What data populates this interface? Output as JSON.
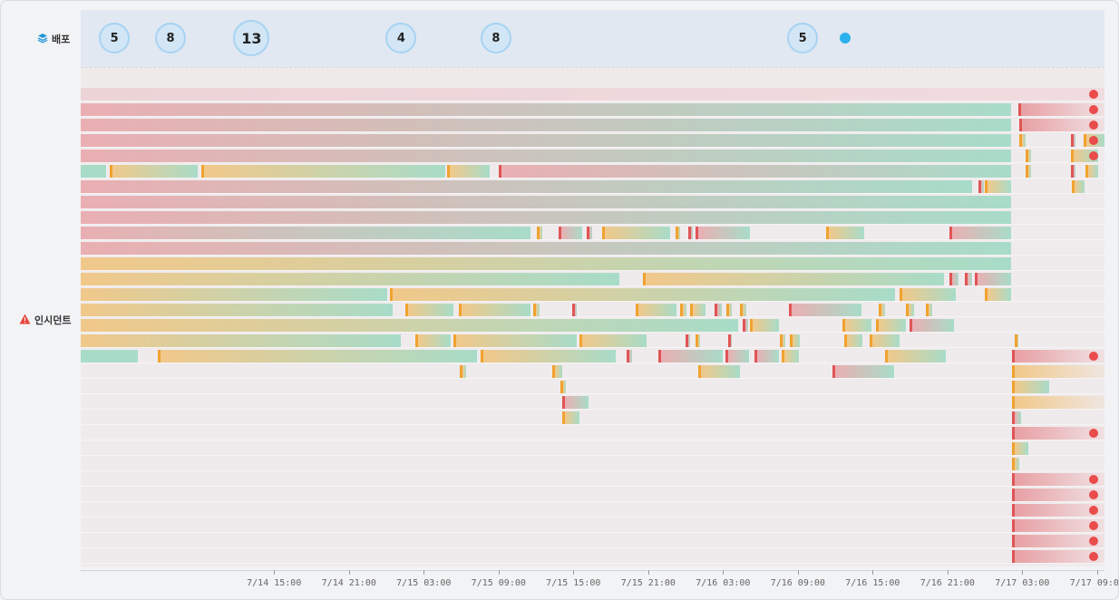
{
  "rows": {
    "deploy": {
      "label": "배포",
      "icon": "layers-icon"
    },
    "incident": {
      "label": "인시던트",
      "icon": "warning-icon"
    }
  },
  "deploy_counts": [
    {
      "count": "5",
      "t": 26.2
    },
    {
      "count": "8",
      "t": 30.7
    },
    {
      "count": "13",
      "t": 37.2
    },
    {
      "count": "4",
      "t": 49.2
    },
    {
      "count": "8",
      "t": 56.8
    },
    {
      "count": "5",
      "t": 81.4
    },
    {
      "count": "",
      "t": 84.8
    }
  ],
  "axis": {
    "start_hour": 23.5,
    "end_hour": 105.6,
    "ticks": [
      {
        "label": "7/14 15:00",
        "t": 39
      },
      {
        "label": "7/14 21:00",
        "t": 45
      },
      {
        "label": "7/15 03:00",
        "t": 51
      },
      {
        "label": "7/15 09:00",
        "t": 57
      },
      {
        "label": "7/15 15:00",
        "t": 63
      },
      {
        "label": "7/15 21:00",
        "t": 69
      },
      {
        "label": "7/16 03:00",
        "t": 75
      },
      {
        "label": "7/16 09:00",
        "t": 81
      },
      {
        "label": "7/16 15:00",
        "t": 87
      },
      {
        "label": "7/16 21:00",
        "t": 93
      },
      {
        "label": "7/17 03:00",
        "t": 99
      },
      {
        "label": "7/17 09:00",
        "t": 105
      }
    ]
  },
  "colors": {
    "red": "#e05555",
    "orange": "#f0a230",
    "teal": "#a8dcc8",
    "salmon": "#e8a0a4",
    "amber": "#f1c88a",
    "dot": "#ea4c4c",
    "deploy_dot": "#2bb0ee"
  },
  "incident_lanes": [
    {
      "bars": [
        {
          "s": 23.5,
          "e": 105.6,
          "c": "faint",
          "edge": "none"
        }
      ],
      "dot": true
    },
    {
      "bars": [
        {
          "s": 23.5,
          "e": 98.1,
          "c": "salmon-teal",
          "edge": "none"
        },
        {
          "s": 98.7,
          "e": 105.6,
          "c": "salmon-fade",
          "edge": "red"
        }
      ],
      "dot": true
    },
    {
      "bars": [
        {
          "s": 23.5,
          "e": 98.1,
          "c": "salmon-teal",
          "edge": "none"
        },
        {
          "s": 98.8,
          "e": 105.6,
          "c": "salmon-fade",
          "edge": "red"
        }
      ],
      "dot": true
    },
    {
      "bars": [
        {
          "s": 23.5,
          "e": 98.1,
          "c": "salmon-teal",
          "edge": "none"
        },
        {
          "s": 98.8,
          "e": 99.3,
          "c": "amber-teal",
          "edge": "orange"
        },
        {
          "s": 102.9,
          "e": 103.3,
          "c": "salmon-teal",
          "edge": "red"
        },
        {
          "s": 103.9,
          "e": 107.2,
          "c": "amber-teal",
          "edge": "orange"
        }
      ],
      "dot": true
    },
    {
      "bars": [
        {
          "s": 23.5,
          "e": 98.1,
          "c": "salmon-teal",
          "edge": "none"
        },
        {
          "s": 99.3,
          "e": 99.7,
          "c": "amber-teal",
          "edge": "orange"
        },
        {
          "s": 102.9,
          "e": 105.1,
          "c": "amber-teal",
          "edge": "orange"
        }
      ],
      "dot": true
    },
    {
      "bars": [
        {
          "s": 23.5,
          "e": 25.5,
          "c": "teal",
          "edge": "none"
        },
        {
          "s": 25.8,
          "e": 32.9,
          "c": "amber-teal",
          "edge": "orange"
        },
        {
          "s": 33.2,
          "e": 52.7,
          "c": "amber-teal",
          "edge": "orange"
        },
        {
          "s": 52.9,
          "e": 56.3,
          "c": "amber-teal",
          "edge": "orange"
        },
        {
          "s": 57.0,
          "e": 98.1,
          "c": "salmon-teal",
          "edge": "red"
        },
        {
          "s": 99.3,
          "e": 99.7,
          "c": "amber-teal",
          "edge": "orange"
        },
        {
          "s": 102.9,
          "e": 103.3,
          "c": "salmon-teal",
          "edge": "red"
        },
        {
          "s": 104.1,
          "e": 105.1,
          "c": "amber-teal",
          "edge": "orange"
        }
      ],
      "dot": false
    },
    {
      "bars": [
        {
          "s": 23.5,
          "e": 95.0,
          "c": "salmon-teal",
          "edge": "none"
        },
        {
          "s": 95.5,
          "e": 95.9,
          "c": "salmon-teal",
          "edge": "red"
        },
        {
          "s": 96.0,
          "e": 98.1,
          "c": "amber-teal",
          "edge": "orange"
        },
        {
          "s": 103.0,
          "e": 104.0,
          "c": "amber-teal",
          "edge": "orange"
        }
      ],
      "dot": false
    },
    {
      "bars": [
        {
          "s": 23.5,
          "e": 98.1,
          "c": "salmon-teal",
          "edge": "none"
        }
      ],
      "dot": false
    },
    {
      "bars": [
        {
          "s": 23.5,
          "e": 98.1,
          "c": "salmon-teal",
          "edge": "none"
        }
      ],
      "dot": false
    },
    {
      "bars": [
        {
          "s": 23.5,
          "e": 59.6,
          "c": "salmon-teal",
          "edge": "none"
        },
        {
          "s": 60.1,
          "e": 60.5,
          "c": "amber-teal",
          "edge": "orange"
        },
        {
          "s": 61.8,
          "e": 63.7,
          "c": "salmon-teal",
          "edge": "red"
        },
        {
          "s": 64.1,
          "e": 64.5,
          "c": "salmon-teal",
          "edge": "red"
        },
        {
          "s": 65.3,
          "e": 70.8,
          "c": "amber-teal",
          "edge": "orange"
        },
        {
          "s": 71.2,
          "e": 71.6,
          "c": "amber-teal",
          "edge": "orange"
        },
        {
          "s": 72.2,
          "e": 72.6,
          "c": "salmon-teal",
          "edge": "red"
        },
        {
          "s": 72.8,
          "e": 77.2,
          "c": "salmon-teal",
          "edge": "red"
        },
        {
          "s": 83.3,
          "e": 86.3,
          "c": "amber-teal",
          "edge": "orange"
        },
        {
          "s": 93.2,
          "e": 98.1,
          "c": "salmon-teal",
          "edge": "red"
        }
      ],
      "dot": false
    },
    {
      "bars": [
        {
          "s": 23.5,
          "e": 98.1,
          "c": "salmon-teal",
          "edge": "none"
        }
      ],
      "dot": false
    },
    {
      "bars": [
        {
          "s": 23.5,
          "e": 98.1,
          "c": "amber-teal",
          "edge": "none"
        }
      ],
      "dot": false
    },
    {
      "bars": [
        {
          "s": 23.5,
          "e": 66.7,
          "c": "amber-teal",
          "edge": "none"
        },
        {
          "s": 68.6,
          "e": 92.7,
          "c": "amber-teal",
          "edge": "orange"
        },
        {
          "s": 93.2,
          "e": 93.9,
          "c": "salmon-teal",
          "edge": "red"
        },
        {
          "s": 94.4,
          "e": 95.0,
          "c": "salmon-teal",
          "edge": "red"
        },
        {
          "s": 95.2,
          "e": 98.1,
          "c": "salmon-teal",
          "edge": "red"
        }
      ],
      "dot": false
    },
    {
      "bars": [
        {
          "s": 23.5,
          "e": 48.1,
          "c": "amber-teal",
          "edge": "none"
        },
        {
          "s": 48.3,
          "e": 88.8,
          "c": "amber-teal",
          "edge": "orange"
        },
        {
          "s": 89.2,
          "e": 93.7,
          "c": "amber-teal",
          "edge": "orange"
        },
        {
          "s": 96.0,
          "e": 98.1,
          "c": "amber-teal",
          "edge": "orange"
        }
      ],
      "dot": false
    },
    {
      "bars": [
        {
          "s": 23.5,
          "e": 48.5,
          "c": "amber-teal",
          "edge": "none"
        },
        {
          "s": 49.5,
          "e": 53.4,
          "c": "amber-teal",
          "edge": "orange"
        },
        {
          "s": 53.8,
          "e": 59.6,
          "c": "amber-teal",
          "edge": "orange"
        },
        {
          "s": 59.8,
          "e": 60.3,
          "c": "amber-teal",
          "edge": "orange"
        },
        {
          "s": 62.9,
          "e": 63.3,
          "c": "salmon-teal",
          "edge": "red"
        },
        {
          "s": 68.0,
          "e": 71.3,
          "c": "amber-teal",
          "edge": "orange"
        },
        {
          "s": 71.6,
          "e": 72.1,
          "c": "amber-teal",
          "edge": "orange"
        },
        {
          "s": 72.4,
          "e": 73.6,
          "c": "amber-teal",
          "edge": "orange"
        },
        {
          "s": 74.3,
          "e": 74.9,
          "c": "salmon-teal",
          "edge": "red"
        },
        {
          "s": 75.3,
          "e": 75.7,
          "c": "amber-teal",
          "edge": "orange"
        },
        {
          "s": 76.4,
          "e": 76.9,
          "c": "amber-teal",
          "edge": "orange"
        },
        {
          "s": 80.3,
          "e": 86.1,
          "c": "salmon-teal",
          "edge": "red"
        },
        {
          "s": 87.5,
          "e": 88.0,
          "c": "amber-teal",
          "edge": "orange"
        },
        {
          "s": 89.7,
          "e": 90.3,
          "c": "amber-teal",
          "edge": "orange"
        },
        {
          "s": 91.3,
          "e": 91.8,
          "c": "amber-teal",
          "edge": "orange"
        }
      ],
      "dot": false
    },
    {
      "bars": [
        {
          "s": 23.5,
          "e": 76.2,
          "c": "amber-teal",
          "edge": "none"
        },
        {
          "s": 76.6,
          "e": 77.0,
          "c": "salmon-teal",
          "edge": "red"
        },
        {
          "s": 77.2,
          "e": 79.5,
          "c": "amber-teal",
          "edge": "orange"
        },
        {
          "s": 84.6,
          "e": 86.9,
          "c": "amber-teal",
          "edge": "orange"
        },
        {
          "s": 87.3,
          "e": 89.7,
          "c": "amber-teal",
          "edge": "orange"
        },
        {
          "s": 90.0,
          "e": 93.5,
          "c": "salmon-teal",
          "edge": "red"
        }
      ],
      "dot": false
    },
    {
      "bars": [
        {
          "s": 23.5,
          "e": 49.2,
          "c": "amber-teal",
          "edge": "none"
        },
        {
          "s": 50.3,
          "e": 53.2,
          "c": "amber-teal",
          "edge": "orange"
        },
        {
          "s": 53.4,
          "e": 63.3,
          "c": "amber-teal",
          "edge": "orange"
        },
        {
          "s": 63.5,
          "e": 68.9,
          "c": "amber-teal",
          "edge": "orange"
        },
        {
          "s": 72.0,
          "e": 72.4,
          "c": "salmon-teal",
          "edge": "red"
        },
        {
          "s": 72.8,
          "e": 73.2,
          "c": "amber-teal",
          "edge": "orange"
        },
        {
          "s": 75.4,
          "e": 75.7,
          "c": "salmon-teal",
          "edge": "red"
        },
        {
          "s": 79.6,
          "e": 80.0,
          "c": "amber-teal",
          "edge": "orange"
        },
        {
          "s": 80.4,
          "e": 81.2,
          "c": "amber-teal",
          "edge": "orange"
        },
        {
          "s": 84.7,
          "e": 86.2,
          "c": "amber-teal",
          "edge": "orange"
        },
        {
          "s": 86.8,
          "e": 89.2,
          "c": "amber-teal",
          "edge": "orange"
        },
        {
          "s": 98.4,
          "e": 98.7,
          "c": "amber-teal",
          "edge": "orange"
        }
      ],
      "dot": false
    },
    {
      "bars": [
        {
          "s": 23.5,
          "e": 28.1,
          "c": "teal",
          "edge": "none"
        },
        {
          "s": 29.7,
          "e": 55.3,
          "c": "amber-teal",
          "edge": "orange"
        },
        {
          "s": 55.6,
          "e": 66.4,
          "c": "amber-teal",
          "edge": "orange"
        },
        {
          "s": 67.3,
          "e": 67.7,
          "c": "salmon-teal",
          "edge": "red"
        },
        {
          "s": 69.8,
          "e": 75.0,
          "c": "salmon-teal",
          "edge": "red"
        },
        {
          "s": 75.2,
          "e": 77.1,
          "c": "salmon-teal",
          "edge": "red"
        },
        {
          "s": 77.5,
          "e": 79.5,
          "c": "salmon-teal",
          "edge": "red"
        },
        {
          "s": 79.7,
          "e": 81.1,
          "c": "amber-teal",
          "edge": "orange"
        },
        {
          "s": 88.0,
          "e": 92.9,
          "c": "amber-teal",
          "edge": "orange"
        },
        {
          "s": 98.2,
          "e": 105.6,
          "c": "salmon-fade",
          "edge": "red"
        }
      ],
      "dot": true
    },
    {
      "bars": [
        {
          "s": 53.9,
          "e": 54.4,
          "c": "amber-teal",
          "edge": "orange"
        },
        {
          "s": 61.3,
          "e": 62.1,
          "c": "amber-teal",
          "edge": "orange"
        },
        {
          "s": 73.0,
          "e": 76.4,
          "c": "amber-teal",
          "edge": "orange"
        },
        {
          "s": 83.8,
          "e": 88.7,
          "c": "salmon-teal",
          "edge": "red"
        },
        {
          "s": 98.2,
          "e": 105.6,
          "c": "amber-fade",
          "edge": "orange"
        }
      ],
      "dot": false
    },
    {
      "bars": [
        {
          "s": 62.0,
          "e": 62.4,
          "c": "amber-teal",
          "edge": "orange"
        },
        {
          "s": 98.2,
          "e": 101.2,
          "c": "amber-teal",
          "edge": "orange"
        }
      ],
      "dot": false
    },
    {
      "bars": [
        {
          "s": 62.1,
          "e": 64.2,
          "c": "salmon-teal",
          "edge": "red"
        },
        {
          "s": 98.2,
          "e": 105.6,
          "c": "amber-fade",
          "edge": "orange"
        }
      ],
      "dot": false
    },
    {
      "bars": [
        {
          "s": 62.1,
          "e": 63.5,
          "c": "amber-teal",
          "edge": "orange"
        },
        {
          "s": 98.2,
          "e": 98.9,
          "c": "salmon-teal",
          "edge": "red"
        }
      ],
      "dot": false
    },
    {
      "bars": [
        {
          "s": 98.2,
          "e": 105.6,
          "c": "salmon-fade",
          "edge": "red"
        }
      ],
      "dot": true
    },
    {
      "bars": [
        {
          "s": 98.2,
          "e": 99.5,
          "c": "amber-teal",
          "edge": "orange"
        }
      ],
      "dot": false
    },
    {
      "bars": [
        {
          "s": 98.2,
          "e": 98.8,
          "c": "amber-teal",
          "edge": "orange"
        }
      ],
      "dot": false
    },
    {
      "bars": [
        {
          "s": 98.2,
          "e": 105.6,
          "c": "salmon-fade",
          "edge": "red"
        }
      ],
      "dot": true
    },
    {
      "bars": [
        {
          "s": 98.2,
          "e": 105.6,
          "c": "salmon-fade",
          "edge": "red"
        }
      ],
      "dot": true
    },
    {
      "bars": [
        {
          "s": 98.2,
          "e": 105.6,
          "c": "salmon-fade",
          "edge": "red"
        }
      ],
      "dot": true
    },
    {
      "bars": [
        {
          "s": 98.2,
          "e": 105.6,
          "c": "salmon-fade",
          "edge": "red"
        }
      ],
      "dot": true
    },
    {
      "bars": [
        {
          "s": 98.2,
          "e": 105.6,
          "c": "salmon-fade",
          "edge": "red"
        }
      ],
      "dot": true
    },
    {
      "bars": [
        {
          "s": 98.2,
          "e": 105.6,
          "c": "salmon-fade",
          "edge": "red"
        }
      ],
      "dot": true
    }
  ]
}
